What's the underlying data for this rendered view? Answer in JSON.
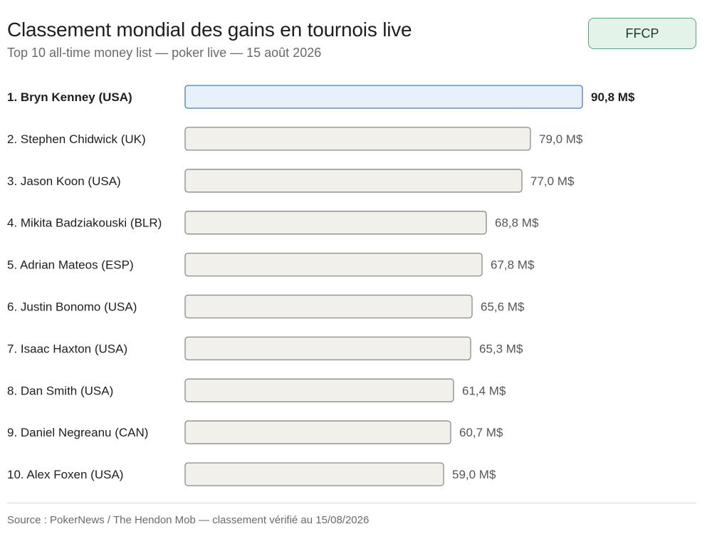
{
  "header": {
    "title": "Classement mondial des gains en tournois live",
    "subtitle": "Top 10 all-time money list — poker live — 15 août 2026",
    "badge": "FFCP"
  },
  "chart_data": {
    "type": "bar",
    "orientation": "horizontal",
    "categories": [
      "1. Bryn Kenney (USA)",
      "2. Stephen Chidwick (UK)",
      "3. Jason Koon (USA)",
      "4. Mikita Badziakouski (BLR)",
      "5. Adrian Mateos (ESP)",
      "6. Justin Bonomo (USA)",
      "7. Isaac Haxton (USA)",
      "8. Dan Smith (USA)",
      "9. Daniel Negreanu (CAN)",
      "10. Alex Foxen (USA)"
    ],
    "values": [
      90.8,
      79.0,
      77.0,
      68.8,
      67.8,
      65.6,
      65.3,
      61.4,
      60.7,
      59.0
    ],
    "value_labels": [
      "90,8 M$",
      "79,0 M$",
      "77,0 M$",
      "68,8 M$",
      "67,8 M$",
      "65,6 M$",
      "65,3 M$",
      "61,4 M$",
      "60,7 M$",
      "59,0 M$"
    ],
    "highlight_index": 0,
    "xlim": [
      0,
      90.8
    ],
    "grid": false,
    "colors": {
      "highlight_fill": "#e6f1fc",
      "highlight_stroke": "#4a7fb8",
      "bar_fill": "#f2f0eb",
      "bar_stroke": "#8a8a8a"
    }
  },
  "footer": {
    "source": "Source : PokerNews / The Hendon Mob — classement vérifié au 15/08/2026"
  }
}
